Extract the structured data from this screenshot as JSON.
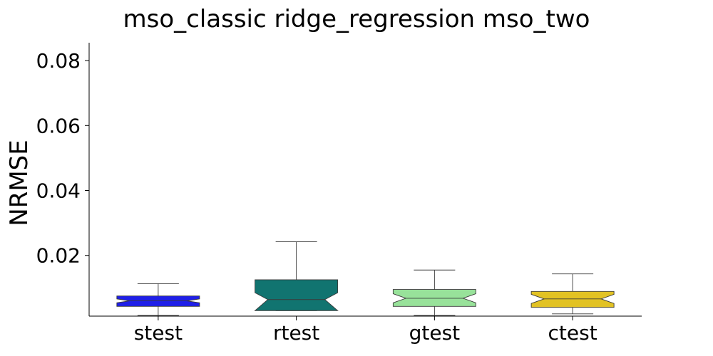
{
  "chart_data": {
    "type": "boxplot",
    "title": "mso_classic ridge_regression mso_two",
    "xlabel": "",
    "ylabel": "NRMSE",
    "ylim": [
      0.0013,
      0.0855
    ],
    "yticks": [
      0.02,
      0.04,
      0.06,
      0.08
    ],
    "ytick_labels": [
      "0.02",
      "0.04",
      "0.06",
      "0.08"
    ],
    "categories": [
      "stest",
      "rtest",
      "gtest",
      "ctest"
    ],
    "notched": true,
    "grid": false,
    "series": [
      {
        "whisker_low": 0.0015,
        "q1": 0.0043,
        "median": 0.006,
        "q3": 0.0075,
        "whisker_high": 0.0113,
        "notch_low": 0.0054,
        "notch_high": 0.0066,
        "color": "#1f1fe8"
      },
      {
        "whisker_low": 0.003,
        "q1": 0.003,
        "median": 0.0064,
        "q3": 0.0125,
        "whisker_high": 0.0242,
        "notch_low": 0.003,
        "notch_high": 0.0085,
        "color": "#117470"
      },
      {
        "whisker_low": 0.0015,
        "q1": 0.0043,
        "median": 0.0068,
        "q3": 0.0095,
        "whisker_high": 0.0155,
        "notch_low": 0.0054,
        "notch_high": 0.0082,
        "color": "#98e29a"
      },
      {
        "whisker_low": 0.002,
        "q1": 0.004,
        "median": 0.0066,
        "q3": 0.0089,
        "whisker_high": 0.0143,
        "notch_low": 0.0052,
        "notch_high": 0.008,
        "color": "#e2c223"
      }
    ]
  }
}
